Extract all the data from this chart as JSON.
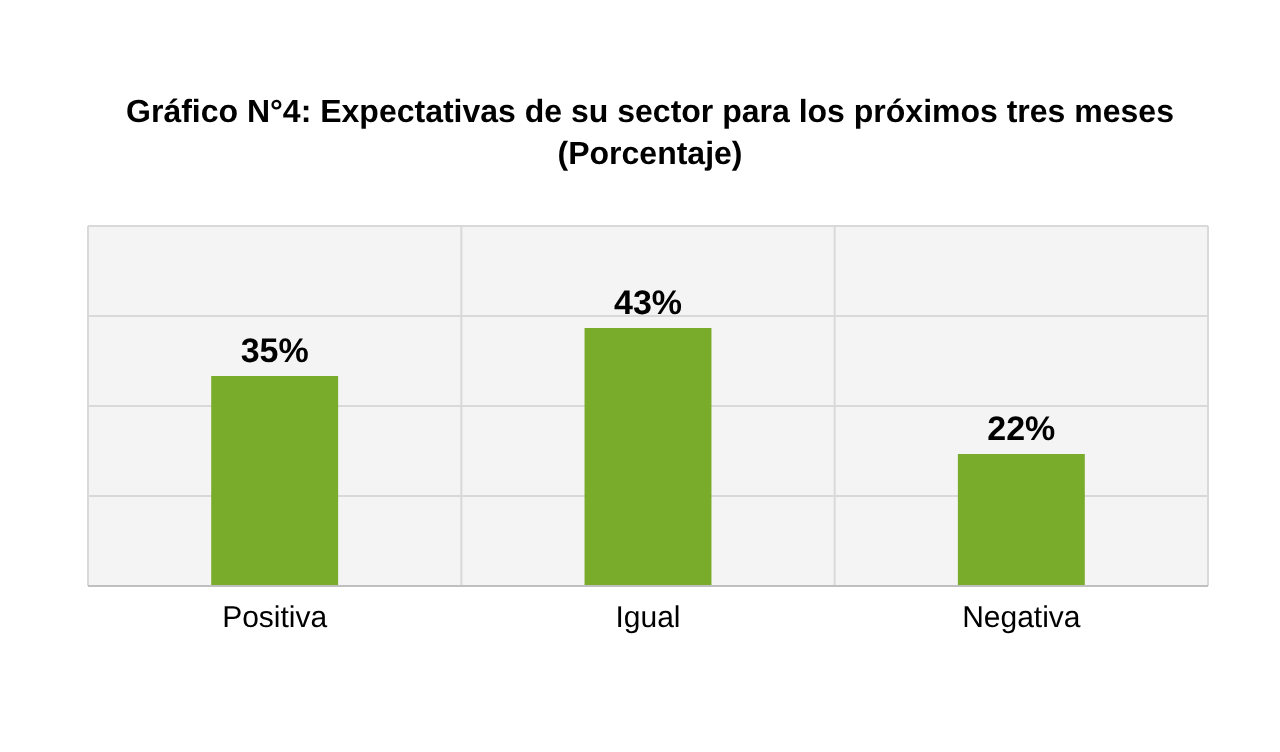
{
  "chart_data": {
    "type": "bar",
    "title": "Gráfico N°4: Expectativas de su sector para los próximos tres meses",
    "subtitle": "(Porcentaje)",
    "categories": [
      "Positiva",
      "Igual",
      "Negativa"
    ],
    "values": [
      35,
      43,
      22
    ],
    "value_labels": [
      "35%",
      "43%",
      "22%"
    ],
    "color": "#7aac2b",
    "ylim": [
      0,
      60
    ],
    "yticks": [
      {
        "value": 0,
        "label": null
      },
      {
        "value": 15,
        "label": null
      },
      {
        "value": 30,
        "label": null
      },
      {
        "value": 45,
        "label": null
      },
      {
        "value": 60,
        "label": null
      }
    ],
    "tick_labels": "x",
    "grid": true
  }
}
